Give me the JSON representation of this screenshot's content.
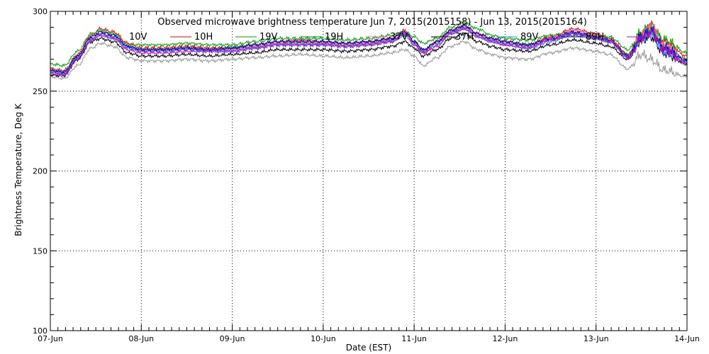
{
  "chart_data": {
    "type": "line",
    "title": "Observed microwave brightness temperature Jun  7, 2015(2015158) - Jun 13, 2015(2015164)",
    "xlabel": "Date (EST)",
    "ylabel": "Brightness Temperature, Deg K",
    "xlim": [
      "2015-06-07",
      "2015-06-14"
    ],
    "ylim": [
      100,
      300
    ],
    "x_ticks": [
      "07-Jun",
      "08-Jun",
      "09-Jun",
      "10-Jun",
      "11-Jun",
      "12-Jun",
      "13-Jun",
      "14-Jun"
    ],
    "y_ticks": [
      100,
      150,
      200,
      250,
      300
    ],
    "grid": true,
    "legend_position": "top",
    "x_days": [
      0.0,
      0.15,
      0.3,
      0.45,
      0.55,
      0.7,
      0.85,
      1.0,
      1.25,
      1.5,
      1.75,
      2.0,
      2.25,
      2.5,
      2.75,
      3.0,
      3.25,
      3.5,
      3.75,
      3.9,
      4.0,
      4.1,
      4.25,
      4.4,
      4.55,
      4.7,
      4.85,
      5.0,
      5.25,
      5.5,
      5.75,
      6.0,
      6.15,
      6.35,
      6.5,
      6.6,
      6.75,
      7.0
    ],
    "series": [
      {
        "name": "10V",
        "color": "#ff0000",
        "values": [
          264,
          263,
          273,
          285,
          289,
          287,
          280,
          277,
          277,
          278,
          277,
          277,
          279,
          281,
          282,
          281,
          280,
          281,
          283,
          288,
          281,
          275,
          281,
          288,
          291,
          286,
          283,
          281,
          279,
          284,
          289,
          286,
          283,
          273,
          286,
          292,
          281,
          272
        ]
      },
      {
        "name": "10H",
        "color": "#00aa00",
        "values": [
          267,
          266,
          275,
          286,
          288,
          286,
          279,
          279,
          279,
          280,
          279,
          279,
          281,
          283,
          283,
          283,
          282,
          283,
          285,
          287,
          284,
          280,
          283,
          290,
          293,
          289,
          285,
          283,
          282,
          285,
          287,
          285,
          284,
          276,
          287,
          290,
          282,
          274
        ]
      },
      {
        "name": "19V",
        "color": "#008800",
        "values": [
          263,
          262,
          272,
          283,
          286,
          284,
          278,
          276,
          276,
          277,
          276,
          277,
          278,
          280,
          280,
          280,
          279,
          280,
          282,
          285,
          281,
          276,
          280,
          287,
          290,
          285,
          282,
          280,
          279,
          282,
          285,
          283,
          281,
          273,
          284,
          287,
          278,
          270
        ]
      },
      {
        "name": "19H",
        "color": "#ff69b4",
        "values": [
          262,
          261,
          271,
          283,
          286,
          284,
          278,
          276,
          276,
          277,
          276,
          276,
          278,
          280,
          281,
          280,
          279,
          280,
          282,
          287,
          280,
          275,
          280,
          287,
          290,
          285,
          282,
          280,
          278,
          283,
          288,
          285,
          282,
          272,
          285,
          290,
          278,
          269
        ]
      },
      {
        "name": "37V",
        "color": "#000000",
        "values": [
          260,
          260,
          270,
          281,
          283,
          281,
          274,
          272,
          272,
          273,
          272,
          273,
          274,
          276,
          276,
          276,
          275,
          276,
          278,
          281,
          277,
          272,
          276,
          283,
          286,
          281,
          278,
          276,
          275,
          279,
          282,
          280,
          278,
          270,
          282,
          284,
          274,
          267
        ]
      },
      {
        "name": "37H",
        "color": "#1e90ff",
        "values": [
          262,
          261,
          271,
          282,
          285,
          283,
          277,
          275,
          275,
          276,
          275,
          275,
          277,
          279,
          279,
          279,
          278,
          279,
          281,
          285,
          279,
          274,
          279,
          286,
          289,
          284,
          281,
          279,
          277,
          281,
          286,
          283,
          281,
          271,
          283,
          286,
          275,
          268
        ]
      },
      {
        "name": "89V",
        "color": "#0000cc",
        "values": [
          263,
          262,
          272,
          284,
          287,
          285,
          278,
          276,
          276,
          277,
          276,
          277,
          279,
          281,
          281,
          281,
          280,
          281,
          283,
          287,
          281,
          276,
          281,
          288,
          291,
          286,
          283,
          281,
          279,
          283,
          287,
          284,
          282,
          272,
          284,
          288,
          277,
          269
        ]
      },
      {
        "name": "89H",
        "color": "#cc00cc",
        "values": [
          261,
          260,
          270,
          282,
          285,
          283,
          276,
          274,
          274,
          275,
          275,
          275,
          277,
          279,
          279,
          279,
          278,
          279,
          281,
          286,
          279,
          274,
          278,
          286,
          289,
          284,
          281,
          279,
          277,
          282,
          286,
          283,
          281,
          271,
          283,
          287,
          276,
          267
        ]
      },
      {
        "name": "",
        "color": "#999999",
        "values": [
          259,
          258,
          266,
          277,
          280,
          278,
          271,
          269,
          269,
          270,
          269,
          270,
          271,
          272,
          273,
          272,
          271,
          272,
          274,
          276,
          272,
          266,
          271,
          278,
          281,
          276,
          273,
          271,
          270,
          274,
          277,
          275,
          273,
          264,
          273,
          270,
          263,
          259
        ]
      }
    ]
  }
}
